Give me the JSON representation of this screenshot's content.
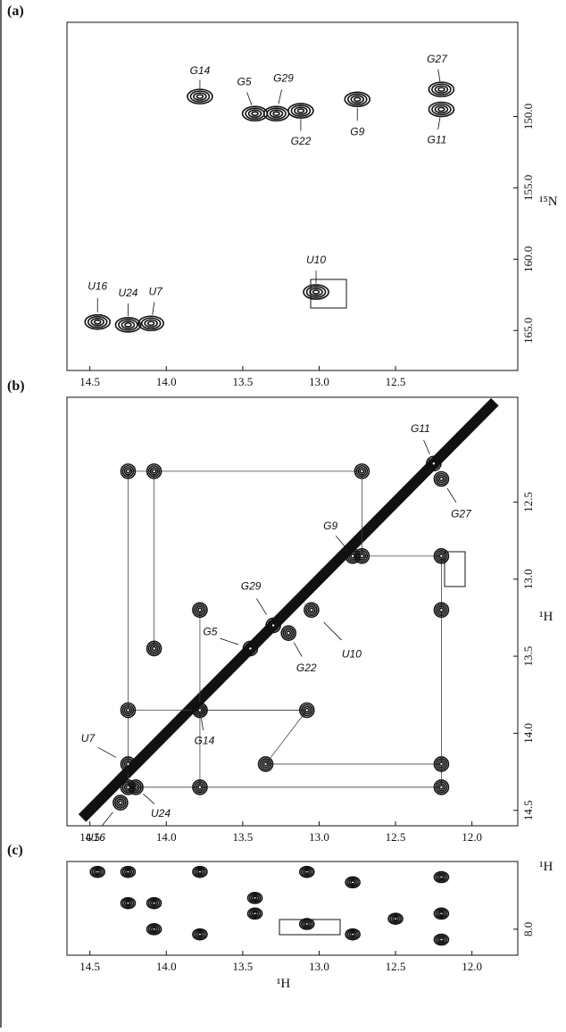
{
  "chart_data": [
    {
      "type": "scatter",
      "panel_label": "(a)",
      "y_label": "¹⁵N",
      "xlim": [
        14.65,
        11.7
      ],
      "xticks": [
        14.5,
        {
          "value": 14,
          "label": "14.0"
        },
        13.5,
        {
          "value": 13,
          "label": "13.0"
        },
        12.5
      ],
      "ylim": [
        143.4,
        167.8
      ],
      "yticks": [
        {
          "value": 150,
          "label": "150.0"
        },
        {
          "value": 155,
          "label": "155.0"
        },
        {
          "value": 160,
          "label": "160.0"
        },
        {
          "value": 165,
          "label": "165.0"
        }
      ],
      "series": [
        {
          "color": "#111111",
          "labels": [
            "G14",
            "G5",
            "G29",
            "G22",
            "G9",
            "G27",
            "G11",
            "U10",
            "U16",
            "U24",
            "U7"
          ],
          "x": [
            13.78,
            13.42,
            13.28,
            13.12,
            12.75,
            12.2,
            12.2,
            13.02,
            14.45,
            14.25,
            14.1
          ],
          "y": [
            148.6,
            149.8,
            149.8,
            149.6,
            148.8,
            148.1,
            149.5,
            162.3,
            164.4,
            164.6,
            164.5
          ]
        }
      ]
    },
    {
      "type": "scatter",
      "panel_label": "(b)",
      "y_label": "¹H",
      "xlim": [
        14.65,
        11.7
      ],
      "xticks": [
        14.5,
        {
          "value": 14,
          "label": "14.0"
        },
        13.5,
        {
          "value": 13,
          "label": "13.0"
        },
        12.5,
        {
          "value": 12,
          "label": "12.0"
        }
      ],
      "ylim": [
        11.82,
        14.6
      ],
      "yticks": [
        12.5,
        {
          "value": 13,
          "label": "13.0"
        },
        13.5,
        {
          "value": 14,
          "label": "14.0"
        },
        14.5
      ],
      "series": [
        {
          "color": "#111111",
          "labels": [
            "G11",
            "G27",
            "G9",
            "G29",
            "G5",
            "U10",
            "G22",
            "G14",
            "U7",
            "U24",
            "U16"
          ],
          "x": [
            12.25,
            12.2,
            12.78,
            13.3,
            13.45,
            13.05,
            13.2,
            13.78,
            14.25,
            14.2,
            14.3
          ],
          "y": [
            12.25,
            12.35,
            12.85,
            13.3,
            13.45,
            13.2,
            13.35,
            13.85,
            14.2,
            14.35,
            14.45
          ]
        },
        {
          "color": "#111111",
          "x": [
            14.25,
            14.08,
            12.72,
            12.2,
            12.72,
            13.78,
            14.08,
            14.25,
            13.78,
            13.08,
            13.35,
            12.2,
            14.25,
            13.78,
            12.2,
            12.2
          ],
          "y": [
            12.3,
            12.3,
            12.3,
            12.85,
            12.85,
            13.2,
            13.45,
            13.85,
            13.85,
            13.85,
            14.2,
            14.2,
            14.35,
            14.35,
            14.35,
            13.2
          ]
        }
      ]
    },
    {
      "type": "scatter",
      "panel_label": "(c)",
      "y_label": "¹H",
      "x_label": "¹H",
      "xlim": [
        14.65,
        11.7
      ],
      "xticks": [
        14.5,
        {
          "value": 14,
          "label": "14.0"
        },
        13.5,
        {
          "value": 13,
          "label": "13.0"
        },
        12.5,
        {
          "value": 12,
          "label": "12.0"
        }
      ],
      "ylim": [
        7.35,
        8.25
      ],
      "yticks": [
        {
          "value": 8,
          "label": "8.0"
        }
      ],
      "series": [
        {
          "color": "#111111",
          "x": [
            14.45,
            14.25,
            14.25,
            14.08,
            14.08,
            13.78,
            13.78,
            13.42,
            13.42,
            13.08,
            13.08,
            12.78,
            12.78,
            12.5,
            12.2,
            12.2,
            12.2
          ],
          "y": [
            7.45,
            7.45,
            7.75,
            7.75,
            8.0,
            7.45,
            8.05,
            7.7,
            7.85,
            7.45,
            7.95,
            7.55,
            8.05,
            7.9,
            7.5,
            7.85,
            8.1
          ]
        }
      ]
    }
  ]
}
